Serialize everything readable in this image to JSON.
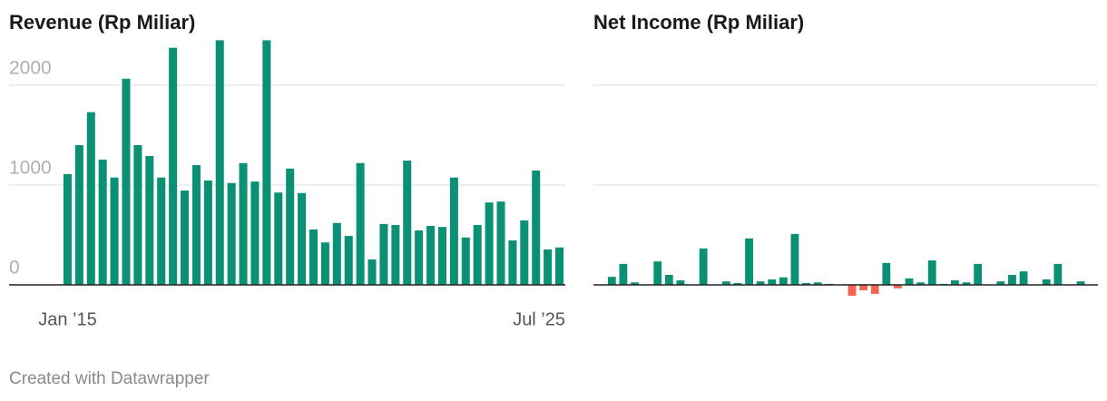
{
  "chart_data": [
    {
      "type": "bar",
      "title": "Revenue (Rp Miliar)",
      "categories": [
        "Jan ’15",
        null,
        null,
        null,
        null,
        null,
        null,
        null,
        null,
        null,
        null,
        null,
        null,
        null,
        null,
        null,
        null,
        null,
        null,
        null,
        null,
        null,
        null,
        null,
        null,
        null,
        null,
        null,
        null,
        null,
        null,
        null,
        null,
        null,
        null,
        null,
        null,
        null,
        null,
        null,
        null,
        null,
        "Jul ’25"
      ],
      "values": [
        1110,
        1400,
        1730,
        1255,
        1075,
        2065,
        1400,
        1290,
        1075,
        2375,
        945,
        1200,
        1045,
        2450,
        1020,
        1220,
        1035,
        2450,
        925,
        1165,
        920,
        555,
        425,
        620,
        490,
        1220,
        255,
        610,
        600,
        1245,
        545,
        590,
        580,
        1075,
        475,
        600,
        825,
        835,
        445,
        645,
        1145,
        355,
        375
      ],
      "color": "#0a9175",
      "negative_color": "#f26450",
      "ylim": [
        -200,
        2490
      ],
      "yticks": [
        0,
        1000,
        2000
      ],
      "ytick_labels": true,
      "grid": true
    },
    {
      "type": "bar",
      "title": "Net Income (Rp Miliar)",
      "categories": [
        null,
        null,
        null,
        null,
        null,
        null,
        null,
        null,
        null,
        null,
        null,
        null,
        null,
        null,
        null,
        null,
        null,
        null,
        null,
        null,
        null,
        null,
        null,
        null,
        null,
        null,
        null,
        null,
        null,
        null,
        null,
        null,
        null,
        null,
        null,
        null,
        null,
        null,
        null,
        null,
        null,
        null,
        null
      ],
      "values": [
        80,
        210,
        25,
        0,
        235,
        100,
        45,
        0,
        365,
        0,
        35,
        18,
        465,
        35,
        55,
        75,
        510,
        18,
        25,
        10,
        0,
        -110,
        -55,
        -90,
        220,
        -35,
        65,
        25,
        245,
        10,
        45,
        25,
        210,
        0,
        35,
        100,
        135,
        0,
        55,
        210,
        0,
        35,
        0
      ],
      "color": "#0a9175",
      "negative_color": "#f26450",
      "ylim": [
        -200,
        2490
      ],
      "yticks": [
        0,
        1000,
        2000
      ],
      "ytick_labels": false,
      "grid": true
    }
  ],
  "footer": "Created with Datawrapper"
}
